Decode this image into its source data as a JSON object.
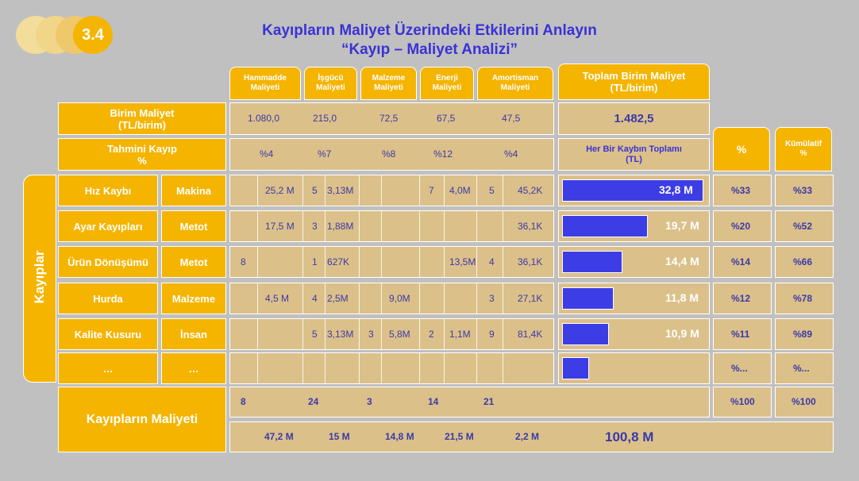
{
  "slide": {
    "number": "3.4",
    "title1": "Kayıpların Maliyet Üzerindeki Etkilerini Anlayın",
    "title2": "“Kayıp – Maliyet Analizi”",
    "side_label": "Kayıplar",
    "total_label": "Kayıpların Maliyeti"
  },
  "headers": {
    "hammadde": "Hammadde Maliyeti",
    "iscilik": "İşgücü Maliyeti",
    "malzeme": "Malzeme Maliyeti",
    "enerji": "Enerji Maliyeti",
    "amortisman": "Amortisman Maliyeti",
    "toplam": "Toplam Birim Maliyet (TL/birim)",
    "each_total": "Her Bir Kaybın Toplamı (TL)",
    "pct": "%",
    "cum": "Kümülatif %"
  },
  "unit_cost": {
    "label": "Birim Maliyet (TL/birim)",
    "values": [
      "1.080,0",
      "215,0",
      "72,5",
      "67,5",
      "47,5"
    ],
    "total": "1.482,5"
  },
  "est_loss": {
    "label": "Tahmini Kayıp %",
    "values": [
      "%4",
      "%7",
      "%8",
      "%12",
      "%4"
    ]
  },
  "rows": [
    {
      "name": "Hız Kaybı",
      "type": "Makina",
      "c": [
        "",
        "25,2 M",
        "5",
        "3,13M",
        "",
        "",
        "7",
        "4,0M",
        "5",
        "45,2K"
      ],
      "total": "32,8 M",
      "pct": "%33",
      "cum": "%33",
      "bar": 0.33
    },
    {
      "name": "Ayar Kayıpları",
      "type": "Metot",
      "c": [
        "",
        "17,5 M",
        "3",
        "1,88M",
        "",
        "",
        "",
        "",
        "",
        "36,1K"
      ],
      "total": "19,7 M",
      "pct": "%20",
      "cum": "%52",
      "bar": 0.2
    },
    {
      "name": "Ürün Dönüşümü",
      "type": "Metot",
      "c": [
        "8",
        "",
        "1",
        "627K",
        "",
        "",
        "",
        "13,5M",
        "4",
        "36,1K"
      ],
      "total": "14,4 M",
      "pct": "%14",
      "cum": "%66",
      "bar": 0.14
    },
    {
      "name": "Hurda",
      "type": "Malzeme",
      "c": [
        "",
        "4,5 M",
        "4",
        "2,5M",
        "",
        "9,0M",
        "",
        "",
        "3",
        "27,1K"
      ],
      "total": "11,8 M",
      "pct": "%12",
      "cum": "%78",
      "bar": 0.12
    },
    {
      "name": "Kalite Kusuru",
      "type": "İnsan",
      "c": [
        "",
        "",
        "5",
        "3,13M",
        "3",
        "5,8M",
        "2",
        "1,1M",
        "9",
        "81,4K"
      ],
      "total": "10,9 M",
      "pct": "%11",
      "cum": "%89",
      "bar": 0.11
    },
    {
      "name": "…",
      "type": "…",
      "c": [
        "",
        "",
        "",
        "",
        "",
        "",
        "",
        "",
        "",
        ""
      ],
      "total": "",
      "pct": "%...",
      "cum": "%...",
      "bar": 0.06
    }
  ],
  "totals": {
    "counts": [
      "8",
      "24",
      "3",
      "14",
      "21"
    ],
    "pct": "%100",
    "cum": "%100",
    "costs": [
      "47,2 M",
      "15 M",
      "14,8 M",
      "21,5 M",
      "2,2 M"
    ],
    "grand": "100,8 M"
  },
  "colors": {
    "orange": "#f5b400",
    "tan": "#dcc08a",
    "blue": "#3a32d6",
    "bar": "#3d3de6"
  }
}
